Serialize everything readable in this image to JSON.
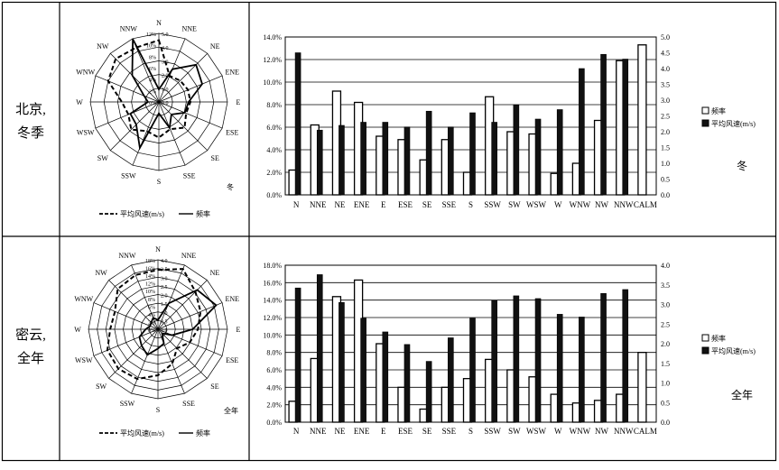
{
  "directions": [
    "N",
    "NNE",
    "NE",
    "ENE",
    "E",
    "ESE",
    "SE",
    "SSE",
    "S",
    "SSW",
    "SW",
    "WSW",
    "W",
    "WNW",
    "NW",
    "NNW"
  ],
  "chart_data": [
    {
      "id": "winter",
      "row_label": [
        "北京,",
        "冬季"
      ],
      "season_label": "冬",
      "rose": {
        "type": "radar",
        "corner_label": "冬",
        "axis_labels": [
          "N",
          "NNE",
          "NE",
          "ENE",
          "E",
          "ESE",
          "SE",
          "SSE",
          "S",
          "SSW",
          "SW",
          "WSW",
          "W",
          "WNW",
          "NW",
          "NNW"
        ],
        "ring_ticks_speed": [
          "0.0",
          "1.0",
          "2.0",
          "3.0",
          "4.0",
          "5.0"
        ],
        "ring_ticks_freq": [
          "0%",
          "2%",
          "4%",
          "6%",
          "8%",
          "10%",
          "12%"
        ],
        "speed_max": 5,
        "freq_max": 12,
        "legend": {
          "speed": "平均风速(m/s)",
          "freq": "频率"
        }
      },
      "bar": {
        "type": "bar",
        "categories": [
          "N",
          "NNE",
          "NE",
          "ENE",
          "E",
          "ESE",
          "SE",
          "SSE",
          "S",
          "SSW",
          "SW",
          "WSW",
          "W",
          "WNW",
          "NW",
          "NNW",
          "CALM"
        ],
        "left_ticks": [
          "0.0%",
          "2.0%",
          "4.0%",
          "6.0%",
          "8.0%",
          "10.0%",
          "12.0%",
          "14.0%"
        ],
        "right_ticks": [
          "0.0",
          "0.5",
          "1.0",
          "1.5",
          "2.0",
          "2.5",
          "3.0",
          "3.5",
          "4.0",
          "4.5",
          "5.0"
        ],
        "left_max": 14,
        "right_max": 5,
        "series": [
          {
            "name": "频率",
            "axis": "left",
            "values": [
              2.2,
              6.2,
              9.2,
              8.2,
              5.2,
              4.9,
              3.1,
              4.9,
              2.0,
              8.7,
              5.6,
              5.4,
              1.9,
              2.8,
              6.6,
              11.9,
              13.3
            ]
          },
          {
            "name": "平均风速(m/s)",
            "axis": "right",
            "values": [
              4.5,
              2.05,
              2.2,
              2.3,
              2.3,
              2.15,
              2.65,
              2.15,
              2.6,
              2.3,
              2.85,
              2.4,
              2.7,
              4.0,
              4.45,
              4.3,
              null
            ]
          }
        ],
        "legend_labels": [
          "频率",
          "平均风速(m/s)"
        ]
      }
    },
    {
      "id": "annual",
      "row_label": [
        "密云,",
        "全年"
      ],
      "season_label": "全年",
      "rose": {
        "type": "radar",
        "corner_label": "全年",
        "axis_labels": [
          "N",
          "NNE",
          "NE",
          "ENE",
          "E",
          "ESE",
          "SE",
          "SSE",
          "S",
          "SSW",
          "SW",
          "WSW",
          "W",
          "WNW",
          "NW",
          "NNW"
        ],
        "ring_ticks_speed": [
          "0.0",
          "0.5",
          "1.0",
          "1.5",
          "2.0",
          "2.5",
          "3.0",
          "3.5",
          "4.0"
        ],
        "ring_ticks_freq": [
          "0%",
          "2%",
          "4%",
          "6%",
          "8%",
          "10%",
          "12%",
          "14%",
          "16%",
          "18%"
        ],
        "speed_max": 4,
        "freq_max": 18,
        "legend": {
          "speed": "平均风速(m/s)",
          "freq": "频率"
        }
      },
      "bar": {
        "type": "bar",
        "categories": [
          "N",
          "NNE",
          "NE",
          "ENE",
          "E",
          "ESE",
          "SE",
          "SSE",
          "S",
          "SSW",
          "SW",
          "WSW",
          "W",
          "WNW",
          "NW",
          "NNW",
          "CALM"
        ],
        "left_ticks": [
          "0.0%",
          "2.0%",
          "4.0%",
          "6.0%",
          "8.0%",
          "10.0%",
          "12.0%",
          "14.0%",
          "16.0%",
          "18.0%"
        ],
        "right_ticks": [
          "0.0",
          "0.5",
          "1.0",
          "1.5",
          "2.0",
          "2.5",
          "3.0",
          "3.5",
          "4.0"
        ],
        "left_max": 18,
        "right_max": 4,
        "series": [
          {
            "name": "频率",
            "axis": "left",
            "values": [
              2.4,
              7.3,
              14.4,
              16.3,
              9.0,
              4.0,
              1.5,
              4.0,
              5.0,
              7.2,
              6.0,
              5.2,
              3.2,
              2.2,
              2.5,
              3.2,
              8.0
            ]
          },
          {
            "name": "平均风速(m/s)",
            "axis": "right",
            "values": [
              3.42,
              3.76,
              3.05,
              2.65,
              2.3,
              1.98,
              1.55,
              2.15,
              2.65,
              3.1,
              3.22,
              3.15,
              2.75,
              2.68,
              3.28,
              3.38,
              null
            ]
          }
        ],
        "legend_labels": [
          "频率",
          "平均风速(m/s)"
        ]
      }
    }
  ]
}
